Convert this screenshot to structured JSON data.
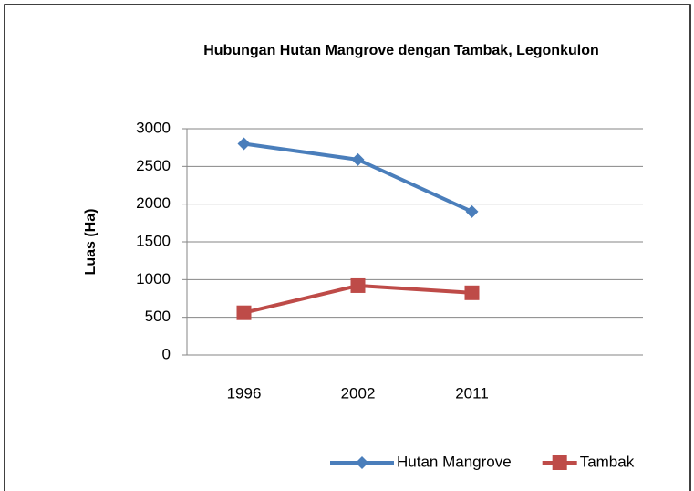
{
  "chart_data": {
    "type": "line",
    "title": "Hubungan Hutan Mangrove dengan Tambak, Legonkulon",
    "y_label": "Luas (Ha)",
    "categories": [
      "1996",
      "2002",
      "2011",
      null
    ],
    "series": [
      {
        "name": "Hutan Mangrove",
        "color": "#4a7ebb",
        "marker": "diamond",
        "values": [
          2800,
          2590,
          1900,
          null
        ]
      },
      {
        "name": "Tambak",
        "color": "#be4b48",
        "marker": "square",
        "values": [
          560,
          920,
          825,
          null
        ]
      }
    ],
    "ylim": [
      0,
      3000
    ],
    "yticks": [
      0,
      500,
      1000,
      1500,
      2000,
      2500,
      3000
    ],
    "grid": true,
    "legend": "bottom"
  }
}
